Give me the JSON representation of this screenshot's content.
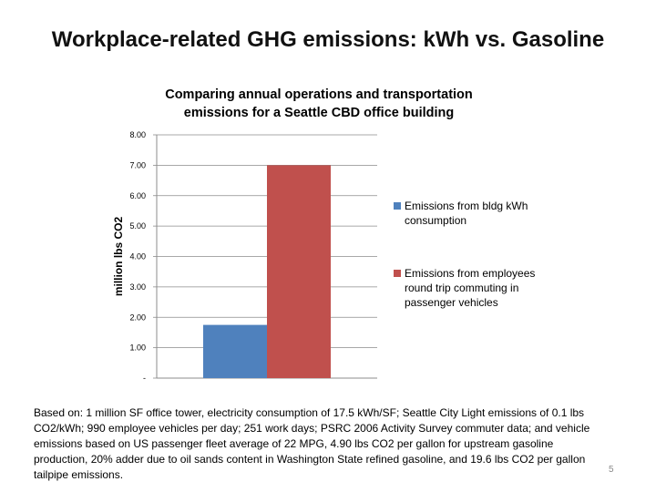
{
  "slide": {
    "title": "Workplace-related GHG emissions: kWh vs. Gasoline",
    "footnote": "Based on: 1 million SF office tower, electricity consumption of 17.5 kWh/SF; Seattle City Light emissions of 0.1 lbs CO2/kWh; 990 employee vehicles per day; 251 work days; PSRC 2006 Activity Survey commuter data; and vehicle emissions based on US passenger fleet average of 22 MPG, 4.90 lbs CO2 per gallon for upstream gasoline production, 20% adder due to oil sands content in Washington State refined gasoline, and 19.6 lbs CO2 per gallon tailpipe emissions.",
    "page_number": "5"
  },
  "chart_data": {
    "type": "bar",
    "title_lines": [
      "Comparing  annual operations and transportation",
      "emissions for a Seattle CBD office building"
    ],
    "ylabel": "million lbs CO2",
    "xlabel": "",
    "ylim": [
      0,
      8
    ],
    "yticks": [
      "-",
      "1.00",
      "2.00",
      "3.00",
      "4.00",
      "5.00",
      "6.00",
      "7.00",
      "8.00"
    ],
    "grid": true,
    "legend_position": "right",
    "series": [
      {
        "name": "Emissions from bldg kWh consumption",
        "values": [
          1.75
        ],
        "color": "#4F81BD"
      },
      {
        "name": "Emissions from employees round trip commuting in passenger vehicles",
        "values": [
          7.0
        ],
        "color": "#C0504D"
      }
    ]
  }
}
